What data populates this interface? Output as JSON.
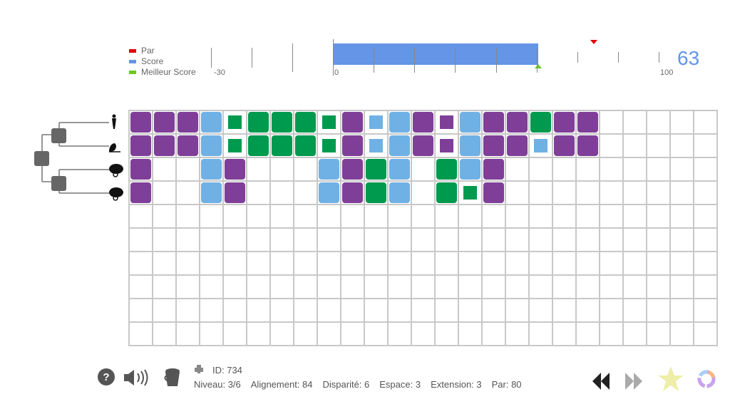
{
  "legend": {
    "par": "Par",
    "score": "Score",
    "best": "Meilleur Score"
  },
  "colors": {
    "par": "#e00000",
    "score": "#6495e6",
    "best": "#66cc22",
    "purple": "#7f3f98",
    "blue": "#6fb1e4",
    "green": "#009a4e"
  },
  "scale": {
    "min_label": "-30",
    "zero_label": "0",
    "max_label": "100",
    "score": 63,
    "par": 80,
    "best": 63
  },
  "score_display": "63",
  "species": [
    "human-icon",
    "rat-icon",
    "chameleon-icon",
    "chameleon-icon"
  ],
  "grid": {
    "columns": 25,
    "rows": 10,
    "sequences": [
      "P P P B g G G G g P b B P p B P P G P P",
      "P P P B g G G G g P b B P p B P P b P P",
      "P . . B P . . . B P G B . G B P",
      "P . . B P . . . B P G B . G g P"
    ]
  },
  "status": {
    "id": "ID:  734",
    "niveau": "Niveau: 3/6",
    "alignement": "Alignement: 84",
    "disparite": "Disparité: 6",
    "espace": "Espace: 3",
    "extension": "Extension: 3",
    "par": "Par: 80"
  }
}
